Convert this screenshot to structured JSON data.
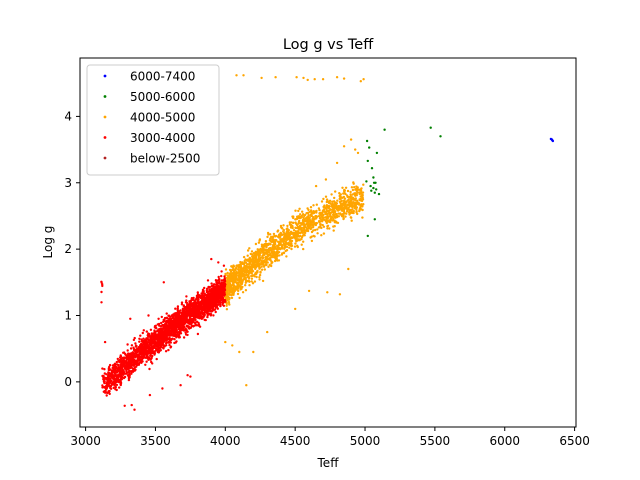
{
  "chart_data": {
    "type": "scatter",
    "title": "Log g vs Teff",
    "xlabel": "Teff",
    "ylabel": "Log g",
    "xlim": [
      2960,
      6510
    ],
    "ylim": [
      -0.68,
      4.88
    ],
    "xticks": [
      "3000",
      "3500",
      "4000",
      "4500",
      "5000",
      "5500",
      "6000",
      "6500"
    ],
    "yticks": [
      "0",
      "1",
      "2",
      "3",
      "4"
    ],
    "legend_position": "top-left",
    "grid": false,
    "series": [
      {
        "name": "6000-7400",
        "color": "#0000ff",
        "points": [
          [
            6330,
            3.66
          ],
          [
            6340,
            3.64
          ],
          [
            6345,
            3.63
          ],
          [
            6338,
            3.65
          ]
        ]
      },
      {
        "name": "5000-6000",
        "color": "#008000",
        "points": [
          [
            5015,
            3.63
          ],
          [
            5030,
            3.53
          ],
          [
            5020,
            3.33
          ],
          [
            5050,
            3.22
          ],
          [
            5060,
            3.08
          ],
          [
            5075,
            3.0
          ],
          [
            5040,
            2.95
          ],
          [
            5080,
            2.9
          ],
          [
            5070,
            2.85
          ],
          [
            5100,
            2.83
          ],
          [
            5060,
            2.92
          ],
          [
            5045,
            2.88
          ],
          [
            5010,
            3.02
          ],
          [
            5070,
            2.45
          ],
          [
            5020,
            2.2
          ],
          [
            5140,
            3.8
          ],
          [
            5470,
            3.83
          ],
          [
            5540,
            3.7
          ],
          [
            5085,
            3.45
          ],
          [
            5065,
            3.0
          ]
        ]
      },
      {
        "name": "4000-5000",
        "color": "#ffa500",
        "region": {
          "x": [
            4000,
            4990
          ],
          "center_line": [
            [
              4000,
              1.4
            ],
            [
              4300,
              1.95
            ],
            [
              4600,
              2.4
            ],
            [
              4990,
              2.8
            ]
          ],
          "spread": 0.3
        },
        "points": [
          [
            4080,
            4.62
          ],
          [
            4130,
            4.62
          ],
          [
            4260,
            4.58
          ],
          [
            4360,
            4.59
          ],
          [
            4510,
            4.59
          ],
          [
            4560,
            4.58
          ],
          [
            4590,
            4.55
          ],
          [
            4640,
            4.56
          ],
          [
            4700,
            4.56
          ],
          [
            4800,
            4.59
          ],
          [
            4850,
            4.57
          ],
          [
            4990,
            4.56
          ],
          [
            4970,
            4.53
          ],
          [
            4150,
            -0.05
          ],
          [
            4880,
            1.7
          ],
          [
            4820,
            1.32
          ],
          [
            4730,
            1.35
          ],
          [
            4600,
            1.37
          ],
          [
            4500,
            1.1
          ],
          [
            4300,
            0.75
          ],
          [
            4200,
            0.45
          ],
          [
            4100,
            0.45
          ],
          [
            4050,
            0.55
          ],
          [
            4000,
            0.6
          ],
          [
            4650,
            2.95
          ],
          [
            4720,
            3.05
          ],
          [
            4800,
            3.3
          ],
          [
            4850,
            3.55
          ],
          [
            4900,
            3.65
          ],
          [
            4950,
            3.45
          ],
          [
            4930,
            3.5
          ]
        ]
      },
      {
        "name": "3000-4000",
        "color": "#ff0000",
        "region": {
          "x": [
            3110,
            4000
          ],
          "center_line": [
            [
              3120,
              -0.05
            ],
            [
              3400,
              0.45
            ],
            [
              3700,
              0.95
            ],
            [
              4000,
              1.4
            ]
          ],
          "spread": 0.28
        },
        "points": [
          [
            3280,
            -0.36
          ],
          [
            3330,
            -0.35
          ],
          [
            3350,
            -0.42
          ],
          [
            3460,
            -0.2
          ],
          [
            3550,
            -0.1
          ],
          [
            3680,
            -0.05
          ],
          [
            3730,
            0.1
          ],
          [
            3750,
            0.08
          ],
          [
            3140,
            0.6
          ],
          [
            3120,
            0.2
          ],
          [
            3130,
            -0.15
          ],
          [
            3320,
            0.95
          ],
          [
            3450,
            1.0
          ],
          [
            3560,
            1.5
          ],
          [
            3900,
            1.85
          ],
          [
            3950,
            1.8
          ],
          [
            3990,
            1.75
          ]
        ]
      },
      {
        "name": "below-2500",
        "color": "#b22222",
        "points": []
      }
    ]
  }
}
